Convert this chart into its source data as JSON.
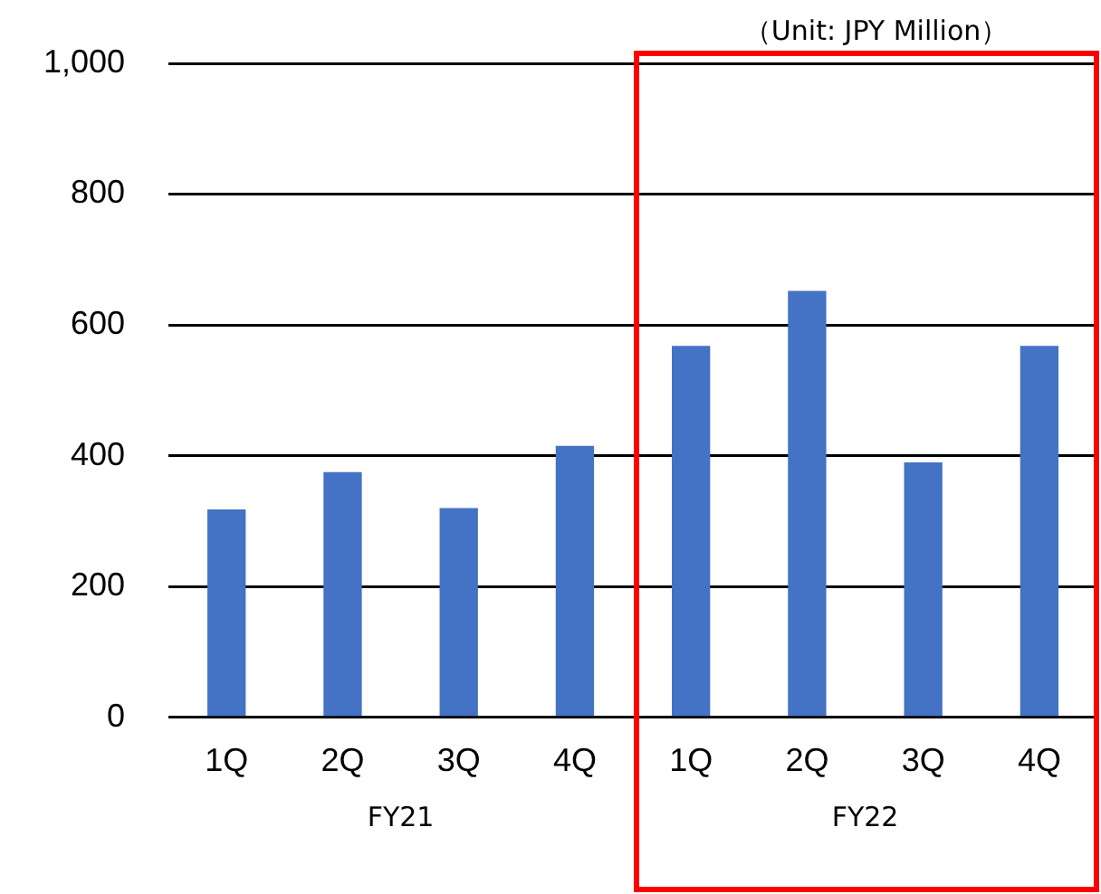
{
  "chart_data": {
    "type": "bar",
    "categories": [
      "1Q",
      "2Q",
      "3Q",
      "4Q",
      "1Q",
      "2Q",
      "3Q",
      "4Q"
    ],
    "values": [
      318,
      375,
      320,
      415,
      568,
      652,
      390,
      568
    ],
    "color": "#4472c4",
    "ylim": [
      0,
      1000
    ],
    "yticks": [
      0,
      200,
      400,
      600,
      800,
      {
        "value": 1000,
        "label": "1,000"
      }
    ],
    "grid": "y",
    "legend": false,
    "annotations": [
      "（Unit: JPY Million）",
      "FY21",
      "FY22"
    ]
  }
}
